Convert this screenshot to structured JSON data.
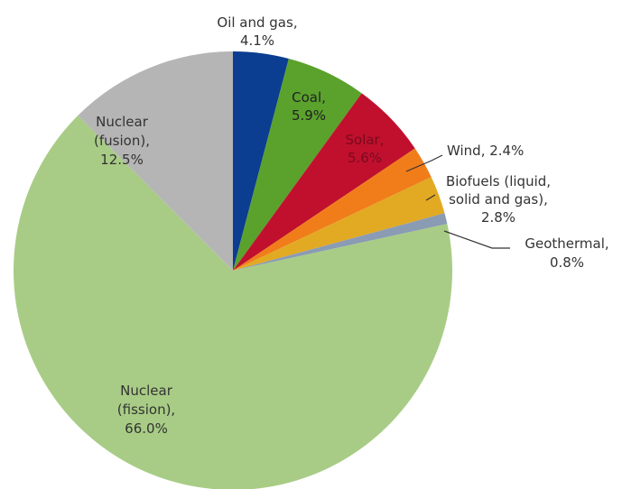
{
  "chart_data": {
    "type": "pie",
    "title": "",
    "start": "top, clockwise",
    "slices": [
      {
        "label": "Oil and gas,",
        "value_label": "4.1%",
        "value": 4.1,
        "color": "#0b3d91"
      },
      {
        "label": "Coal,",
        "value_label": "5.9%",
        "value": 5.9,
        "color": "#5aa22c"
      },
      {
        "label": "Solar,",
        "value_label": "5.6%",
        "value": 5.6,
        "color": "#c0102e"
      },
      {
        "label": "Wind, 2.4%",
        "value_label": "",
        "value": 2.4,
        "color": "#f07d1a"
      },
      {
        "label": "Biofuels (liquid,",
        "label2": "solid and gas),",
        "value_label": "2.8%",
        "value": 2.8,
        "color": "#e2aa22"
      },
      {
        "label": "Geothermal,",
        "value_label": "0.8%",
        "value": 0.8,
        "color": "#8a9bb4"
      },
      {
        "label": "Nuclear",
        "label2": "(fission),",
        "value_label": "66.0%",
        "value": 66.0,
        "color": "#a8cc85"
      },
      {
        "label": "Nuclear",
        "label2": "(fusion),",
        "value_label": "12.5%",
        "value": 12.5,
        "color": "#b5b5b5"
      }
    ]
  }
}
